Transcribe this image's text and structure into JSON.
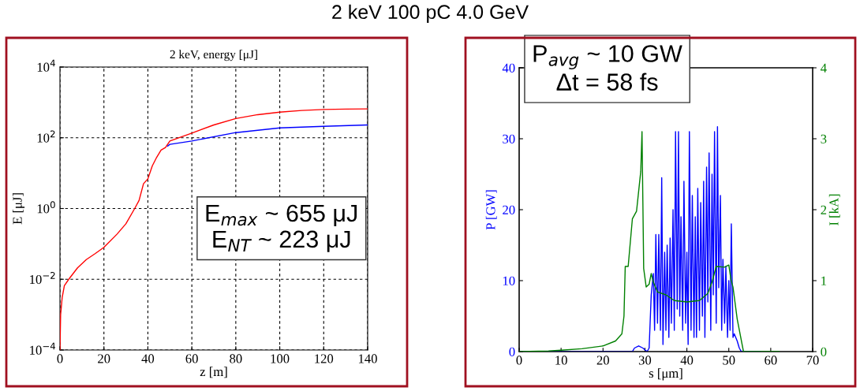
{
  "chart_data": [
    {
      "type": "line",
      "title": "2 keV, energy [μJ]",
      "xlabel": "z [m]",
      "ylabel": "E [μJ]",
      "log": "y",
      "grid": true,
      "xlim": [
        0,
        140
      ],
      "xticks": [
        0,
        20,
        40,
        60,
        80,
        100,
        120,
        140
      ],
      "ylim": [
        0.0001,
        10000
      ],
      "yticks": [
        {
          "value": 0.0001,
          "label": "10$^{−4}$"
        },
        {
          "value": 0.01,
          "label": "10$^{−2}$"
        },
        {
          "value": 1,
          "label": "10$^{0}$"
        },
        {
          "value": 100,
          "label": "10$^{2}$"
        },
        {
          "value": 10000,
          "label": "10$^{4}$"
        }
      ],
      "series": [
        {
          "color": "#0000ff",
          "x": [
            49,
            50,
            60,
            80,
            100,
            120,
            140
          ],
          "values": [
            58,
            65,
            81,
            140,
            190,
            210,
            230
          ]
        },
        {
          "color": "#ff0000",
          "x": [
            0,
            0.3,
            1,
            2,
            4,
            8,
            12,
            16,
            20,
            26,
            30,
            34,
            36,
            38,
            40,
            42,
            44,
            46,
            48,
            50,
            55,
            60,
            70,
            80,
            90,
            100,
            110,
            120,
            130,
            140
          ],
          "values": [
            0.0001,
            0.001,
            0.003,
            0.0066,
            0.01,
            0.021,
            0.036,
            0.053,
            0.08,
            0.19,
            0.37,
            1,
            1.7,
            5,
            6.9,
            16,
            28,
            45,
            53,
            81,
            105,
            135,
            230,
            350,
            450,
            530,
            590,
            630,
            645,
            655
          ]
        }
      ],
      "annotations": [
        "2 keV 100 pC 4.0 GeV",
        "E$_{max}$ ~ 655 μJ\nE$_{NT}$ ~ 223 μJ"
      ]
    },
    {
      "type": "line",
      "xlabel": "s [μm]",
      "ylabel": "P [GW]",
      "y2label": "I [kA]",
      "grid": false,
      "xlim": [
        0,
        70
      ],
      "xticks": [
        0,
        10,
        20,
        30,
        40,
        50,
        60,
        70
      ],
      "ylim": [
        0,
        40
      ],
      "yticks": [
        0,
        10,
        20,
        30,
        40
      ],
      "y2lim": [
        0,
        4
      ],
      "y2ticks": [
        0,
        1,
        2,
        3,
        4
      ],
      "series": [
        {
          "color": "#0000ff",
          "x": [
            0,
            27,
            27.5,
            28.5,
            29.5,
            30.5,
            31,
            31.5,
            32,
            32.3,
            32.6,
            33,
            33.3,
            33.7,
            34,
            34.3,
            34.7,
            35,
            35.3,
            35.7,
            36,
            36.3,
            36.7,
            37,
            37.3,
            37.7,
            38,
            38.3,
            38.6,
            39,
            39.3,
            39.7,
            40,
            40.3,
            40.6,
            41,
            41.3,
            41.7,
            42,
            42.3,
            42.6,
            43,
            43.3,
            43.7,
            44,
            44.3,
            44.7,
            45,
            45.3,
            45.7,
            46,
            46.3,
            46.6,
            47,
            47.3,
            47.6,
            48,
            48.3,
            48.6,
            49,
            49.3,
            49.7,
            50,
            50.3,
            50.6,
            51,
            51.3,
            52,
            52.5,
            53,
            57.5
          ],
          "values": [
            0,
            0,
            0.5,
            0.8,
            0.5,
            0,
            0.5,
            8,
            11,
            3,
            16.5,
            4,
            16.5,
            3,
            24.5,
            1,
            14,
            3,
            15,
            2,
            16,
            4,
            20,
            3,
            31,
            6,
            31,
            5,
            19,
            3,
            24,
            4,
            14,
            1,
            31,
            3,
            22,
            2,
            19,
            2,
            23,
            3,
            21,
            5,
            24,
            2,
            26,
            7,
            28,
            3,
            25,
            8,
            31,
            4,
            31.7,
            9,
            22,
            3,
            13,
            4,
            12,
            2,
            10,
            3,
            18,
            2,
            2.5,
            1.5,
            0.5,
            0,
            0
          ]
        },
        {
          "color": "#008000",
          "axis": "y2",
          "x": [
            0,
            7,
            10,
            15,
            20,
            23,
            24.5,
            25,
            25.3,
            26,
            27,
            28,
            29,
            29.3,
            29.7,
            30.3,
            31,
            31.5,
            32,
            33,
            35,
            37,
            40,
            43,
            45,
            46,
            47,
            49,
            50,
            50.5,
            51,
            52,
            53.5,
            62
          ],
          "values": [
            0,
            0.01,
            0.02,
            0.04,
            0.08,
            0.15,
            0.25,
            0.5,
            1.2,
            1.2,
            1.87,
            1.98,
            2.54,
            3.1,
            1.17,
            0.91,
            0.95,
            1.1,
            0.98,
            0.84,
            0.8,
            0.72,
            0.7,
            0.72,
            0.82,
            0.98,
            1.2,
            1.19,
            1.22,
            1.02,
            0.91,
            0.46,
            0,
            0
          ]
        }
      ],
      "annotations": [
        "P$_{avg}$ ~ 10 GW\nΔt = 58 fs"
      ]
    }
  ]
}
